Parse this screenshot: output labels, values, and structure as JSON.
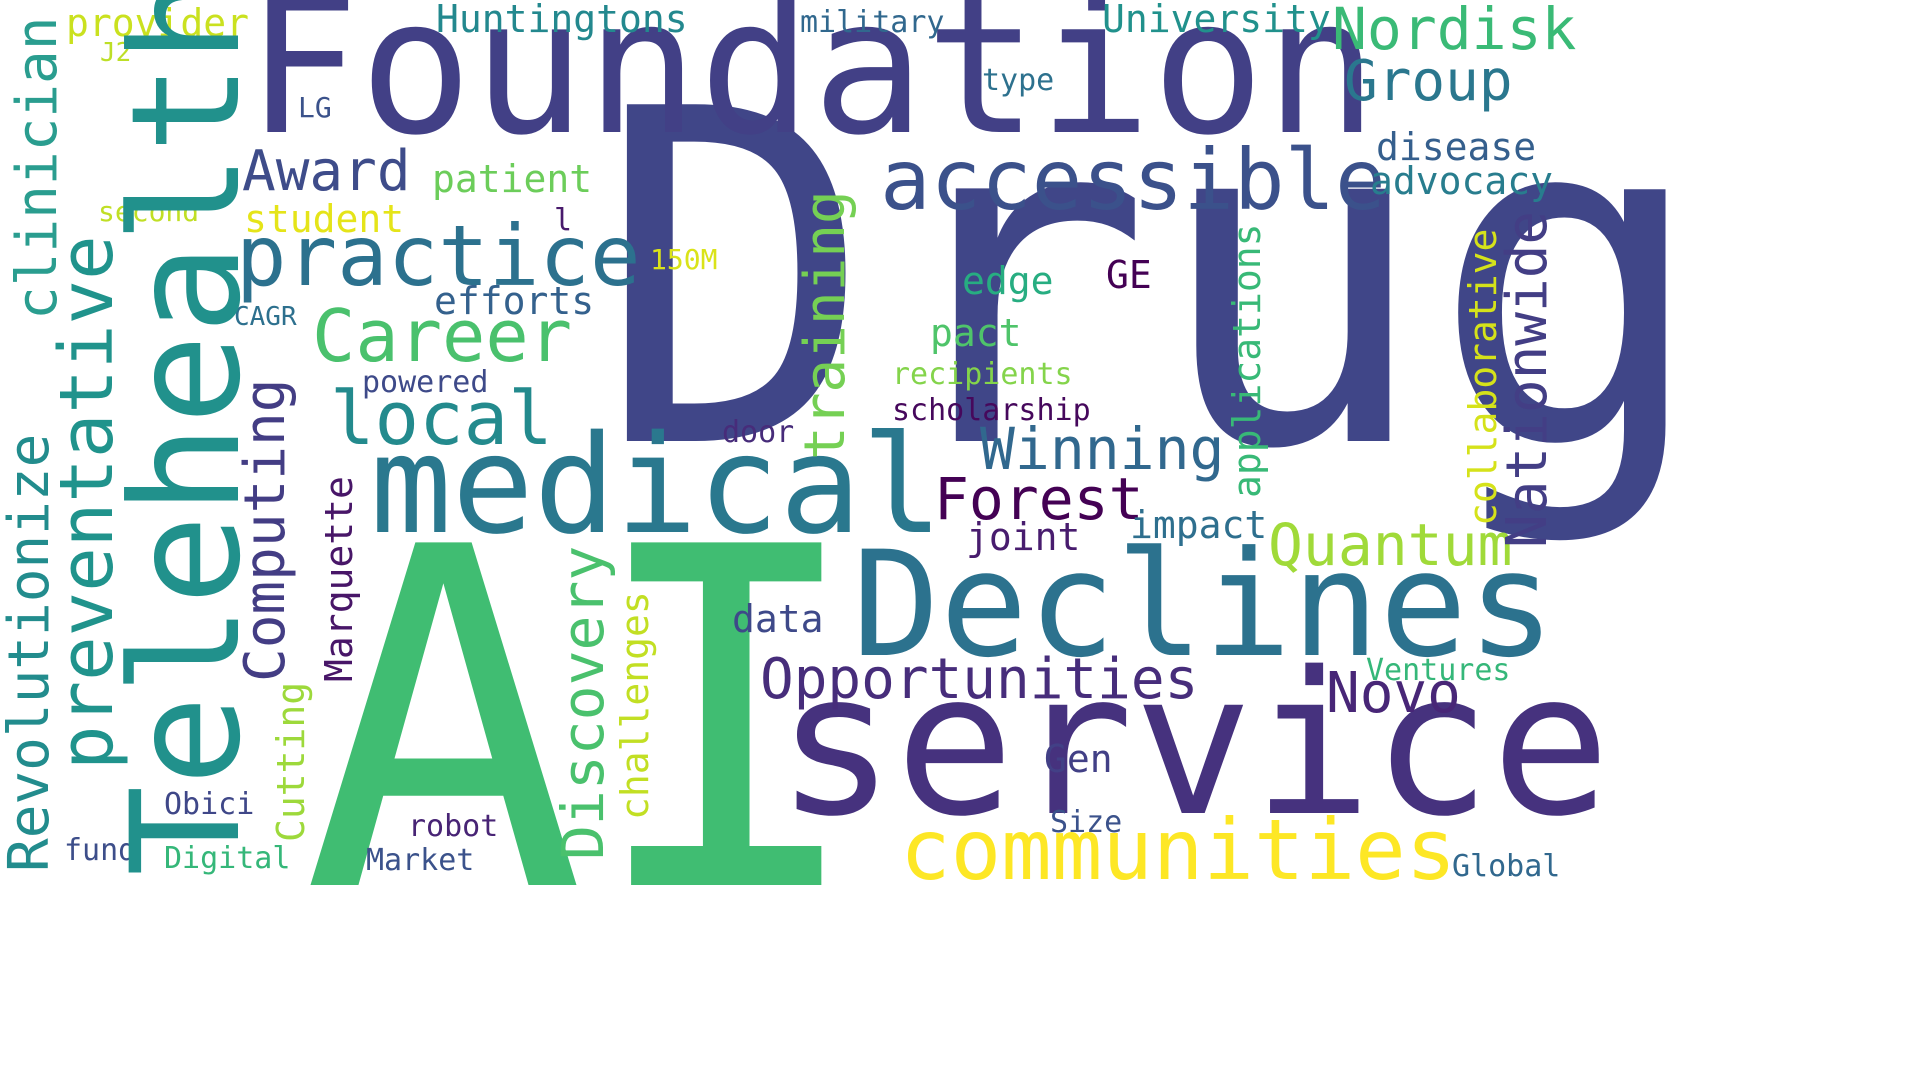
{
  "cloud": {
    "background": "#ffffff",
    "words": [
      {
        "text": "Drug",
        "color": "#404688"
      },
      {
        "text": "AI",
        "color": "#40bd72"
      },
      {
        "text": "Foundation",
        "color": "#424086"
      },
      {
        "text": "service",
        "color": "#46327e"
      },
      {
        "text": "Telehealth",
        "color": "#21918c"
      },
      {
        "text": "Declines",
        "color": "#2c728e"
      },
      {
        "text": "medical",
        "color": "#2a788e"
      },
      {
        "text": "communities",
        "color": "#fde725"
      },
      {
        "text": "preventative",
        "color": "#20938c"
      },
      {
        "text": "accessible",
        "color": "#3b518b"
      },
      {
        "text": "practice",
        "color": "#2c718e"
      },
      {
        "text": "Career",
        "color": "#4ac16d"
      },
      {
        "text": "Revolutionize",
        "color": "#228c8d"
      },
      {
        "text": "local",
        "color": "#238a8d"
      },
      {
        "text": "Opportunities",
        "color": "#472d7b"
      },
      {
        "text": "Winning",
        "color": "#31688e"
      },
      {
        "text": "Nationwide",
        "color": "#433e85"
      },
      {
        "text": "Quantum",
        "color": "#a0da39"
      },
      {
        "text": "Discovery",
        "color": "#4ac16d"
      },
      {
        "text": "Forest",
        "color": "#440154"
      },
      {
        "text": "Nordisk",
        "color": "#3aba76"
      },
      {
        "text": "Novo",
        "color": "#482677"
      },
      {
        "text": "Group",
        "color": "#2a778e"
      },
      {
        "text": "clinician",
        "color": "#2a9d8f"
      },
      {
        "text": "Award",
        "color": "#3e4c8a"
      },
      {
        "text": "Computing",
        "color": "#433d84"
      },
      {
        "text": "training",
        "color": "#75d054"
      },
      {
        "text": "applications",
        "color": "#38b977"
      },
      {
        "text": "collaborative",
        "color": "#d5e21a"
      },
      {
        "text": "disease",
        "color": "#355f8d"
      },
      {
        "text": "advocacy",
        "color": "#287d8e"
      },
      {
        "text": "challenges",
        "color": "#c2df23"
      },
      {
        "text": "Cutting",
        "color": "#9dd93b"
      },
      {
        "text": "Marquette",
        "color": "#481668"
      },
      {
        "text": "impact",
        "color": "#2e6f8e"
      },
      {
        "text": "efforts",
        "color": "#34618d"
      },
      {
        "text": "joint",
        "color": "#481c6e"
      },
      {
        "text": "patient",
        "color": "#6ccd5a"
      },
      {
        "text": "student",
        "color": "#e5e419"
      },
      {
        "text": "edge",
        "color": "#27ad81"
      },
      {
        "text": "pact",
        "color": "#4fc46a"
      },
      {
        "text": "Huntingtons",
        "color": "#23888e"
      },
      {
        "text": "University",
        "color": "#21918c"
      },
      {
        "text": "provider",
        "color": "#cae11f"
      },
      {
        "text": "data",
        "color": "#3e4989"
      },
      {
        "text": "Gen",
        "color": "#424086"
      },
      {
        "text": "GE",
        "color": "#440154"
      },
      {
        "text": "Ventures",
        "color": "#35b779"
      },
      {
        "text": "Digital",
        "color": "#35b779"
      },
      {
        "text": "Obici",
        "color": "#3f4788"
      },
      {
        "text": "robot",
        "color": "#482475"
      },
      {
        "text": "Market",
        "color": "#3b528b"
      },
      {
        "text": "fund",
        "color": "#3d4e8a"
      },
      {
        "text": "Size",
        "color": "#3b528b"
      },
      {
        "text": "Global",
        "color": "#31688e"
      },
      {
        "text": "recipients",
        "color": "#84d44b"
      },
      {
        "text": "scholarship",
        "color": "#46085c"
      },
      {
        "text": "powered",
        "color": "#3e4a89"
      },
      {
        "text": "door",
        "color": "#472c7a"
      },
      {
        "text": "military",
        "color": "#31688e"
      },
      {
        "text": "type",
        "color": "#2d718e"
      },
      {
        "text": "LG",
        "color": "#3b528b"
      },
      {
        "text": "J2",
        "color": "#bddf26"
      },
      {
        "text": "second",
        "color": "#c0df25"
      },
      {
        "text": "CAGR",
        "color": "#2d708e"
      },
      {
        "text": "150M",
        "color": "#dae319"
      },
      {
        "text": "l",
        "color": "#481a6c"
      }
    ]
  }
}
